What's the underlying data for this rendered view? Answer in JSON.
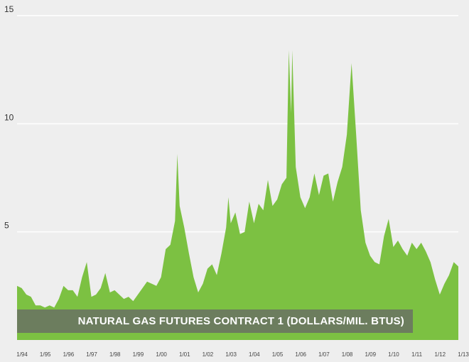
{
  "chart_data": {
    "type": "area",
    "title": "NATURAL GAS FUTURES CONTRACT 1 (DOLLARS/MIL. BTUS)",
    "xlabel": "",
    "ylabel": "",
    "ylim": [
      0,
      15
    ],
    "xlim": [
      1994.0,
      2013.0
    ],
    "y_ticks": [
      5,
      10,
      15
    ],
    "y_tick_labels": [
      "5",
      "10",
      "15"
    ],
    "x_ticks": [
      1994,
      1995,
      1996,
      1997,
      1998,
      1999,
      2000,
      2001,
      2002,
      2003,
      2004,
      2005,
      2006,
      2007,
      2008,
      2009,
      2010,
      2011,
      2012,
      2013
    ],
    "x_tick_labels": [
      "1/94",
      "1/95",
      "1/96",
      "1/97",
      "1/98",
      "1/99",
      "1/00",
      "1/01",
      "1/02",
      "1/03",
      "1/04",
      "1/05",
      "1/06",
      "1/07",
      "1/08",
      "1/09",
      "1/10",
      "1/11",
      "1/12",
      "1/13"
    ],
    "grid": "horizontal",
    "colors": {
      "fill": "#7cc142",
      "grid": "#ffffff",
      "banner": "#6b6f66",
      "background": "#eeeeee"
    },
    "series": [
      {
        "values": [
          [
            1994.0,
            2.5
          ],
          [
            1994.2,
            2.4
          ],
          [
            1994.4,
            2.1
          ],
          [
            1994.6,
            2.0
          ],
          [
            1994.8,
            1.6
          ],
          [
            1995.0,
            1.6
          ],
          [
            1995.2,
            1.5
          ],
          [
            1995.4,
            1.6
          ],
          [
            1995.6,
            1.5
          ],
          [
            1995.8,
            1.9
          ],
          [
            1996.0,
            2.5
          ],
          [
            1996.2,
            2.3
          ],
          [
            1996.4,
            2.3
          ],
          [
            1996.6,
            2.0
          ],
          [
            1996.8,
            2.9
          ],
          [
            1997.0,
            3.6
          ],
          [
            1997.2,
            2.0
          ],
          [
            1997.4,
            2.1
          ],
          [
            1997.6,
            2.4
          ],
          [
            1997.8,
            3.1
          ],
          [
            1998.0,
            2.2
          ],
          [
            1998.2,
            2.3
          ],
          [
            1998.4,
            2.1
          ],
          [
            1998.6,
            1.9
          ],
          [
            1998.8,
            2.0
          ],
          [
            1999.0,
            1.8
          ],
          [
            1999.2,
            2.1
          ],
          [
            1999.4,
            2.4
          ],
          [
            1999.6,
            2.7
          ],
          [
            1999.8,
            2.6
          ],
          [
            2000.0,
            2.5
          ],
          [
            2000.2,
            2.9
          ],
          [
            2000.4,
            4.2
          ],
          [
            2000.6,
            4.4
          ],
          [
            2000.8,
            5.5
          ],
          [
            2000.9,
            8.6
          ],
          [
            2001.0,
            6.2
          ],
          [
            2001.2,
            5.2
          ],
          [
            2001.4,
            4.0
          ],
          [
            2001.6,
            2.9
          ],
          [
            2001.8,
            2.2
          ],
          [
            2002.0,
            2.6
          ],
          [
            2002.2,
            3.3
          ],
          [
            2002.4,
            3.5
          ],
          [
            2002.6,
            3.0
          ],
          [
            2002.8,
            4.0
          ],
          [
            2003.0,
            5.2
          ],
          [
            2003.1,
            6.6
          ],
          [
            2003.2,
            5.4
          ],
          [
            2003.4,
            5.9
          ],
          [
            2003.6,
            4.9
          ],
          [
            2003.8,
            5.0
          ],
          [
            2004.0,
            6.4
          ],
          [
            2004.2,
            5.4
          ],
          [
            2004.4,
            6.3
          ],
          [
            2004.6,
            6.0
          ],
          [
            2004.8,
            7.4
          ],
          [
            2005.0,
            6.2
          ],
          [
            2005.2,
            6.5
          ],
          [
            2005.4,
            7.2
          ],
          [
            2005.6,
            7.5
          ],
          [
            2005.7,
            13.4
          ],
          [
            2005.8,
            10.5
          ],
          [
            2005.85,
            13.4
          ],
          [
            2006.0,
            8.0
          ],
          [
            2006.2,
            6.6
          ],
          [
            2006.4,
            6.1
          ],
          [
            2006.6,
            6.6
          ],
          [
            2006.8,
            7.7
          ],
          [
            2007.0,
            6.7
          ],
          [
            2007.2,
            7.6
          ],
          [
            2007.4,
            7.7
          ],
          [
            2007.6,
            6.4
          ],
          [
            2007.8,
            7.3
          ],
          [
            2008.0,
            8.0
          ],
          [
            2008.2,
            9.5
          ],
          [
            2008.4,
            12.8
          ],
          [
            2008.6,
            9.5
          ],
          [
            2008.8,
            6.0
          ],
          [
            2009.0,
            4.5
          ],
          [
            2009.2,
            3.9
          ],
          [
            2009.4,
            3.6
          ],
          [
            2009.6,
            3.5
          ],
          [
            2009.8,
            4.8
          ],
          [
            2010.0,
            5.6
          ],
          [
            2010.2,
            4.3
          ],
          [
            2010.4,
            4.6
          ],
          [
            2010.6,
            4.2
          ],
          [
            2010.8,
            3.9
          ],
          [
            2011.0,
            4.5
          ],
          [
            2011.2,
            4.2
          ],
          [
            2011.4,
            4.5
          ],
          [
            2011.6,
            4.1
          ],
          [
            2011.8,
            3.6
          ],
          [
            2012.0,
            2.8
          ],
          [
            2012.2,
            2.1
          ],
          [
            2012.4,
            2.6
          ],
          [
            2012.6,
            3.0
          ],
          [
            2012.8,
            3.6
          ],
          [
            2013.0,
            3.4
          ]
        ]
      }
    ]
  }
}
